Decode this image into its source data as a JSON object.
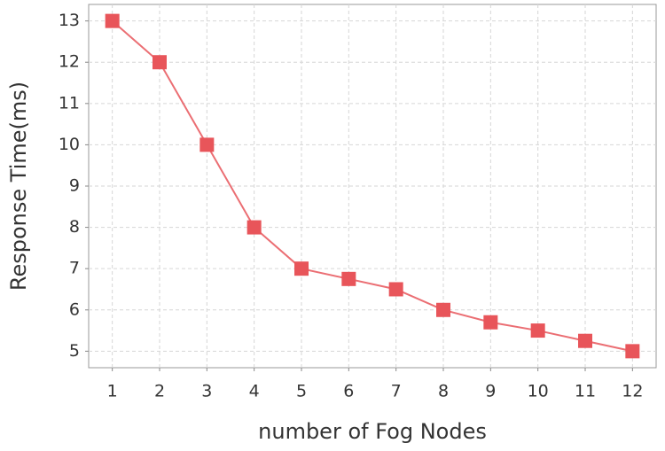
{
  "chart_data": {
    "type": "line",
    "x_label": "number of Fog Nodes",
    "y_label": "Response Time(ms)",
    "x": [
      1,
      2,
      3,
      4,
      5,
      6,
      7,
      8,
      9,
      10,
      11,
      12
    ],
    "series": [
      {
        "color": "#e8555a",
        "values": [
          13,
          12,
          10,
          8,
          7,
          6.75,
          6.5,
          6,
          5.7,
          5.5,
          5.25,
          5
        ]
      }
    ],
    "xlim": [
      0.5,
      12.5
    ],
    "xticks": [
      1,
      2,
      3,
      4,
      5,
      6,
      7,
      8,
      9,
      10,
      11,
      12
    ],
    "ylim": [
      4.6,
      13.4
    ],
    "yticks": [
      5,
      6,
      7,
      8,
      9,
      10,
      11,
      12,
      13
    ],
    "grid": true
  }
}
